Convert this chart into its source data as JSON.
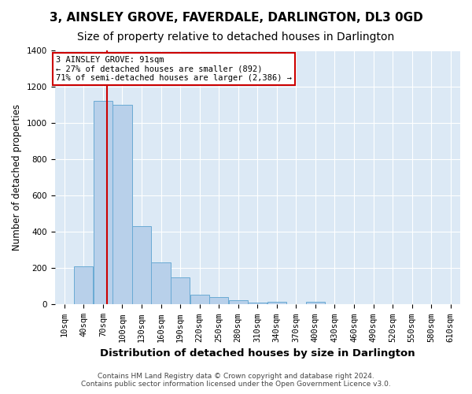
{
  "title": "3, AINSLEY GROVE, FAVERDALE, DARLINGTON, DL3 0GD",
  "subtitle": "Size of property relative to detached houses in Darlington",
  "xlabel": "Distribution of detached houses by size in Darlington",
  "ylabel": "Number of detached properties",
  "footer_line1": "Contains HM Land Registry data © Crown copyright and database right 2024.",
  "footer_line2": "Contains public sector information licensed under the Open Government Licence v3.0.",
  "bin_labels": [
    "10sqm",
    "40sqm",
    "70sqm",
    "100sqm",
    "130sqm",
    "160sqm",
    "190sqm",
    "220sqm",
    "250sqm",
    "280sqm",
    "310sqm",
    "340sqm",
    "370sqm",
    "400sqm",
    "430sqm",
    "460sqm",
    "490sqm",
    "520sqm",
    "550sqm",
    "580sqm",
    "610sqm"
  ],
  "bin_edges": [
    10,
    40,
    70,
    100,
    130,
    160,
    190,
    220,
    250,
    280,
    310,
    340,
    370,
    400,
    430,
    460,
    490,
    520,
    550,
    580,
    610,
    640
  ],
  "bar_heights": [
    0,
    210,
    1120,
    1100,
    430,
    230,
    150,
    55,
    40,
    25,
    10,
    15,
    0,
    15,
    0,
    0,
    0,
    0,
    0,
    0,
    0
  ],
  "bar_color": "#b8d0ea",
  "bar_edge_color": "#6aaad4",
  "fig_background_color": "#ffffff",
  "plot_background_color": "#dce9f5",
  "red_line_x": 91,
  "annotation_text": "3 AINSLEY GROVE: 91sqm\n← 27% of detached houses are smaller (892)\n71% of semi-detached houses are larger (2,386) →",
  "annotation_box_color": "#ffffff",
  "annotation_box_edge_color": "#cc0000",
  "red_line_color": "#cc0000",
  "ylim": [
    0,
    1400
  ],
  "yticks": [
    0,
    200,
    400,
    600,
    800,
    1000,
    1200,
    1400
  ],
  "grid_color": "#ffffff",
  "title_fontsize": 11,
  "subtitle_fontsize": 10,
  "xlabel_fontsize": 9.5,
  "ylabel_fontsize": 8.5,
  "tick_fontsize": 7.5,
  "annotation_fontsize": 7.5,
  "footer_fontsize": 6.5
}
